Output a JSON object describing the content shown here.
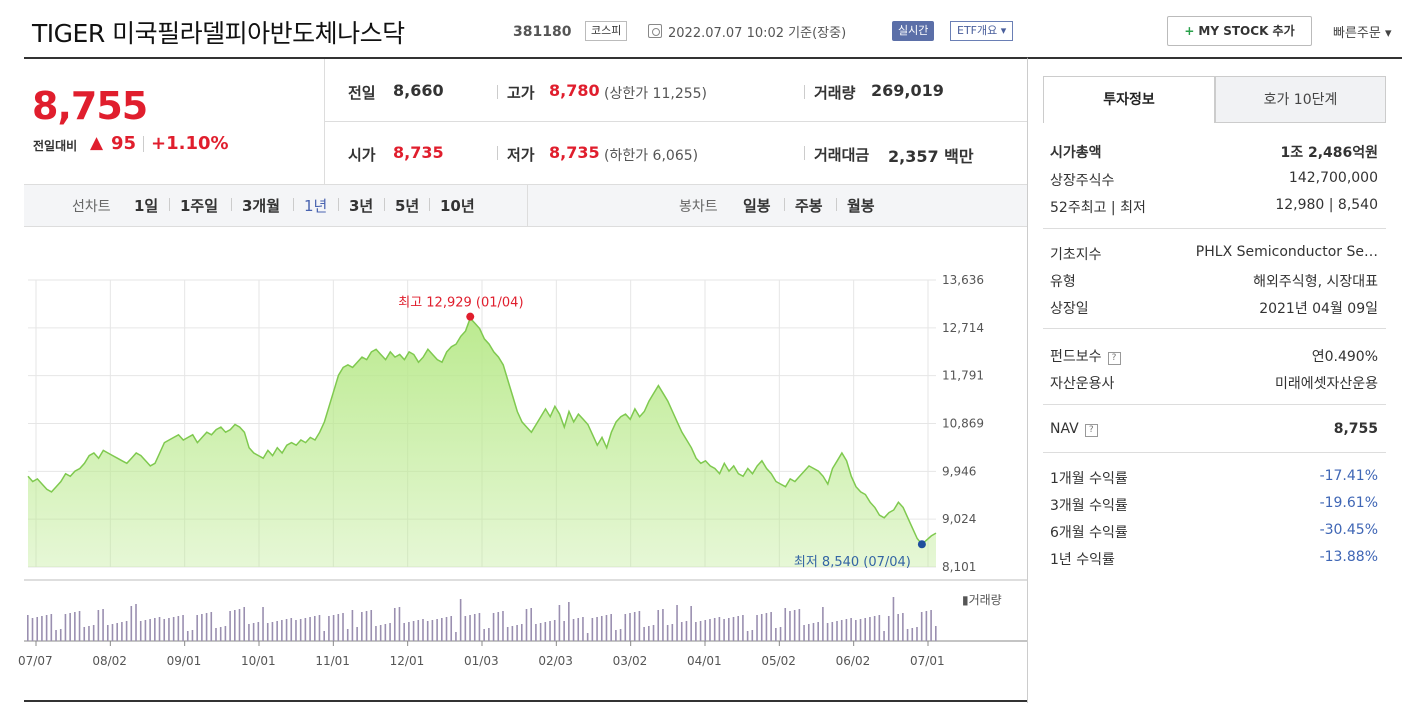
{
  "header": {
    "title": "TIGER 미국필라델피아반도체나스닥",
    "code": "381180",
    "market": "코스피",
    "datetime": "2022.07.07 10:02 기준(장중)",
    "realtime": "실시간",
    "etf_overview": "ETF개요 ▾",
    "mystock_plus": "+",
    "mystock_label": "MY STOCK 추가",
    "quick_order": "빠른주문 ▾"
  },
  "quote": {
    "price": "8,755",
    "diff_label": "전일대비",
    "diff_arrow": "▲",
    "diff_value": "95",
    "diff_pct": "+1.10%",
    "prev_close_label": "전일",
    "prev_close": "8,660",
    "open_label": "시가",
    "open": "8,735",
    "high_label": "고가",
    "high": "8,780",
    "upper_limit": "(상한가 11,255)",
    "low_label": "저가",
    "low": "8,735",
    "lower_limit": "(하한가 6,065)",
    "volume_label": "거래량",
    "volume": "269,019",
    "amount_label": "거래대금",
    "amount": "2,357 백만"
  },
  "period_tabs": {
    "line_label": "선차트",
    "line_items": [
      "1일",
      "1주일",
      "3개월",
      "1년",
      "3년",
      "5년",
      "10년"
    ],
    "active": "1년",
    "candle_label": "봉차트",
    "candle_items": [
      "일봉",
      "주봉",
      "월봉"
    ]
  },
  "chart_data": {
    "type": "area",
    "x_tick_labels": [
      "07/07",
      "08/02",
      "09/01",
      "10/01",
      "11/01",
      "12/01",
      "01/03",
      "02/03",
      "03/02",
      "04/01",
      "05/02",
      "06/02",
      "07/01"
    ],
    "y_ticks": [
      "13,636",
      "12,714",
      "11,791",
      "10,869",
      "9,946",
      "9,024",
      "8,101"
    ],
    "ylim": [
      8101,
      13636
    ],
    "values": [
      9850,
      9750,
      9800,
      9700,
      9600,
      9550,
      9650,
      9750,
      9900,
      9850,
      9950,
      10000,
      10100,
      10250,
      10300,
      10200,
      10350,
      10300,
      10250,
      10200,
      10150,
      10100,
      10200,
      10300,
      10250,
      10150,
      10050,
      10100,
      10300,
      10500,
      10550,
      10600,
      10650,
      10550,
      10600,
      10650,
      10500,
      10600,
      10700,
      10650,
      10750,
      10800,
      10700,
      10750,
      10850,
      10800,
      10700,
      10400,
      10300,
      10250,
      10200,
      10350,
      10250,
      10400,
      10300,
      10450,
      10500,
      10450,
      10550,
      10500,
      10600,
      10550,
      10700,
      10900,
      11200,
      11500,
      11800,
      11950,
      12000,
      11950,
      12050,
      12150,
      12100,
      12250,
      12300,
      12200,
      12100,
      12250,
      12150,
      12200,
      12100,
      12250,
      12200,
      12050,
      12150,
      12300,
      12200,
      12100,
      12050,
      12250,
      12350,
      12400,
      12550,
      12650,
      12900,
      12800,
      12700,
      12500,
      12400,
      12250,
      12150,
      12000,
      11700,
      11400,
      11100,
      10900,
      10800,
      10700,
      10850,
      11000,
      11150,
      11000,
      11200,
      11050,
      10800,
      11100,
      10900,
      11050,
      10950,
      10850,
      10650,
      10450,
      10600,
      10400,
      10700,
      10900,
      11000,
      11050,
      10950,
      11150,
      11000,
      11100,
      11300,
      11450,
      11600,
      11450,
      11300,
      11100,
      10900,
      10700,
      10550,
      10400,
      10200,
      10100,
      10150,
      10050,
      10000,
      9900,
      10100,
      9950,
      10050,
      9900,
      9850,
      10000,
      9900,
      10050,
      10150,
      10000,
      9900,
      9750,
      9700,
      9650,
      9800,
      9750,
      9850,
      9950,
      10050,
      10000,
      9950,
      9850,
      9700,
      10000,
      10150,
      10300,
      10150,
      9850,
      9650,
      9550,
      9500,
      9350,
      9250,
      9100,
      9050,
      9150,
      9200,
      9350,
      9250,
      9050,
      8850,
      8650,
      8540,
      8620,
      8700,
      8755
    ],
    "volume_label": "거래량",
    "max_annotation": "최고 12,929 (01/04)",
    "max_value": 12929,
    "min_annotation": "최저 8,540 (07/04)",
    "min_value": 8540,
    "fill_color": "#b8e98a",
    "line_color": "#7fc94f",
    "volume_color": "#9a8fb0"
  },
  "sidebar": {
    "tab_invest": "투자정보",
    "tab_quote": "호가 10단계",
    "market_cap_label": "시가총액",
    "market_cap": "1조 2,486억원",
    "shares_label": "상장주식수",
    "shares": "142,700,000",
    "hi_lo_label": "52주최고 | 최저",
    "hi_lo": "12,980 | 8,540",
    "index_label": "기초지수",
    "index": "PHLX Semiconductor Se…",
    "type_label": "유형",
    "type": "해외주식형, 시장대표",
    "listed_label": "상장일",
    "listed": "2021년 04월 09일",
    "fee_label": "펀드보수",
    "fee": "연0.490%",
    "manager_label": "자산운용사",
    "manager": "미래에셋자산운용",
    "nav_label": "NAV",
    "nav": "8,755",
    "q_mark": "?",
    "returns": [
      {
        "label": "1개월 수익률",
        "value": "-17.41%"
      },
      {
        "label": "3개월 수익률",
        "value": "-19.61%"
      },
      {
        "label": "6개월 수익률",
        "value": "-30.45%"
      },
      {
        "label": "1년 수익률",
        "value": "-13.88%"
      }
    ]
  }
}
